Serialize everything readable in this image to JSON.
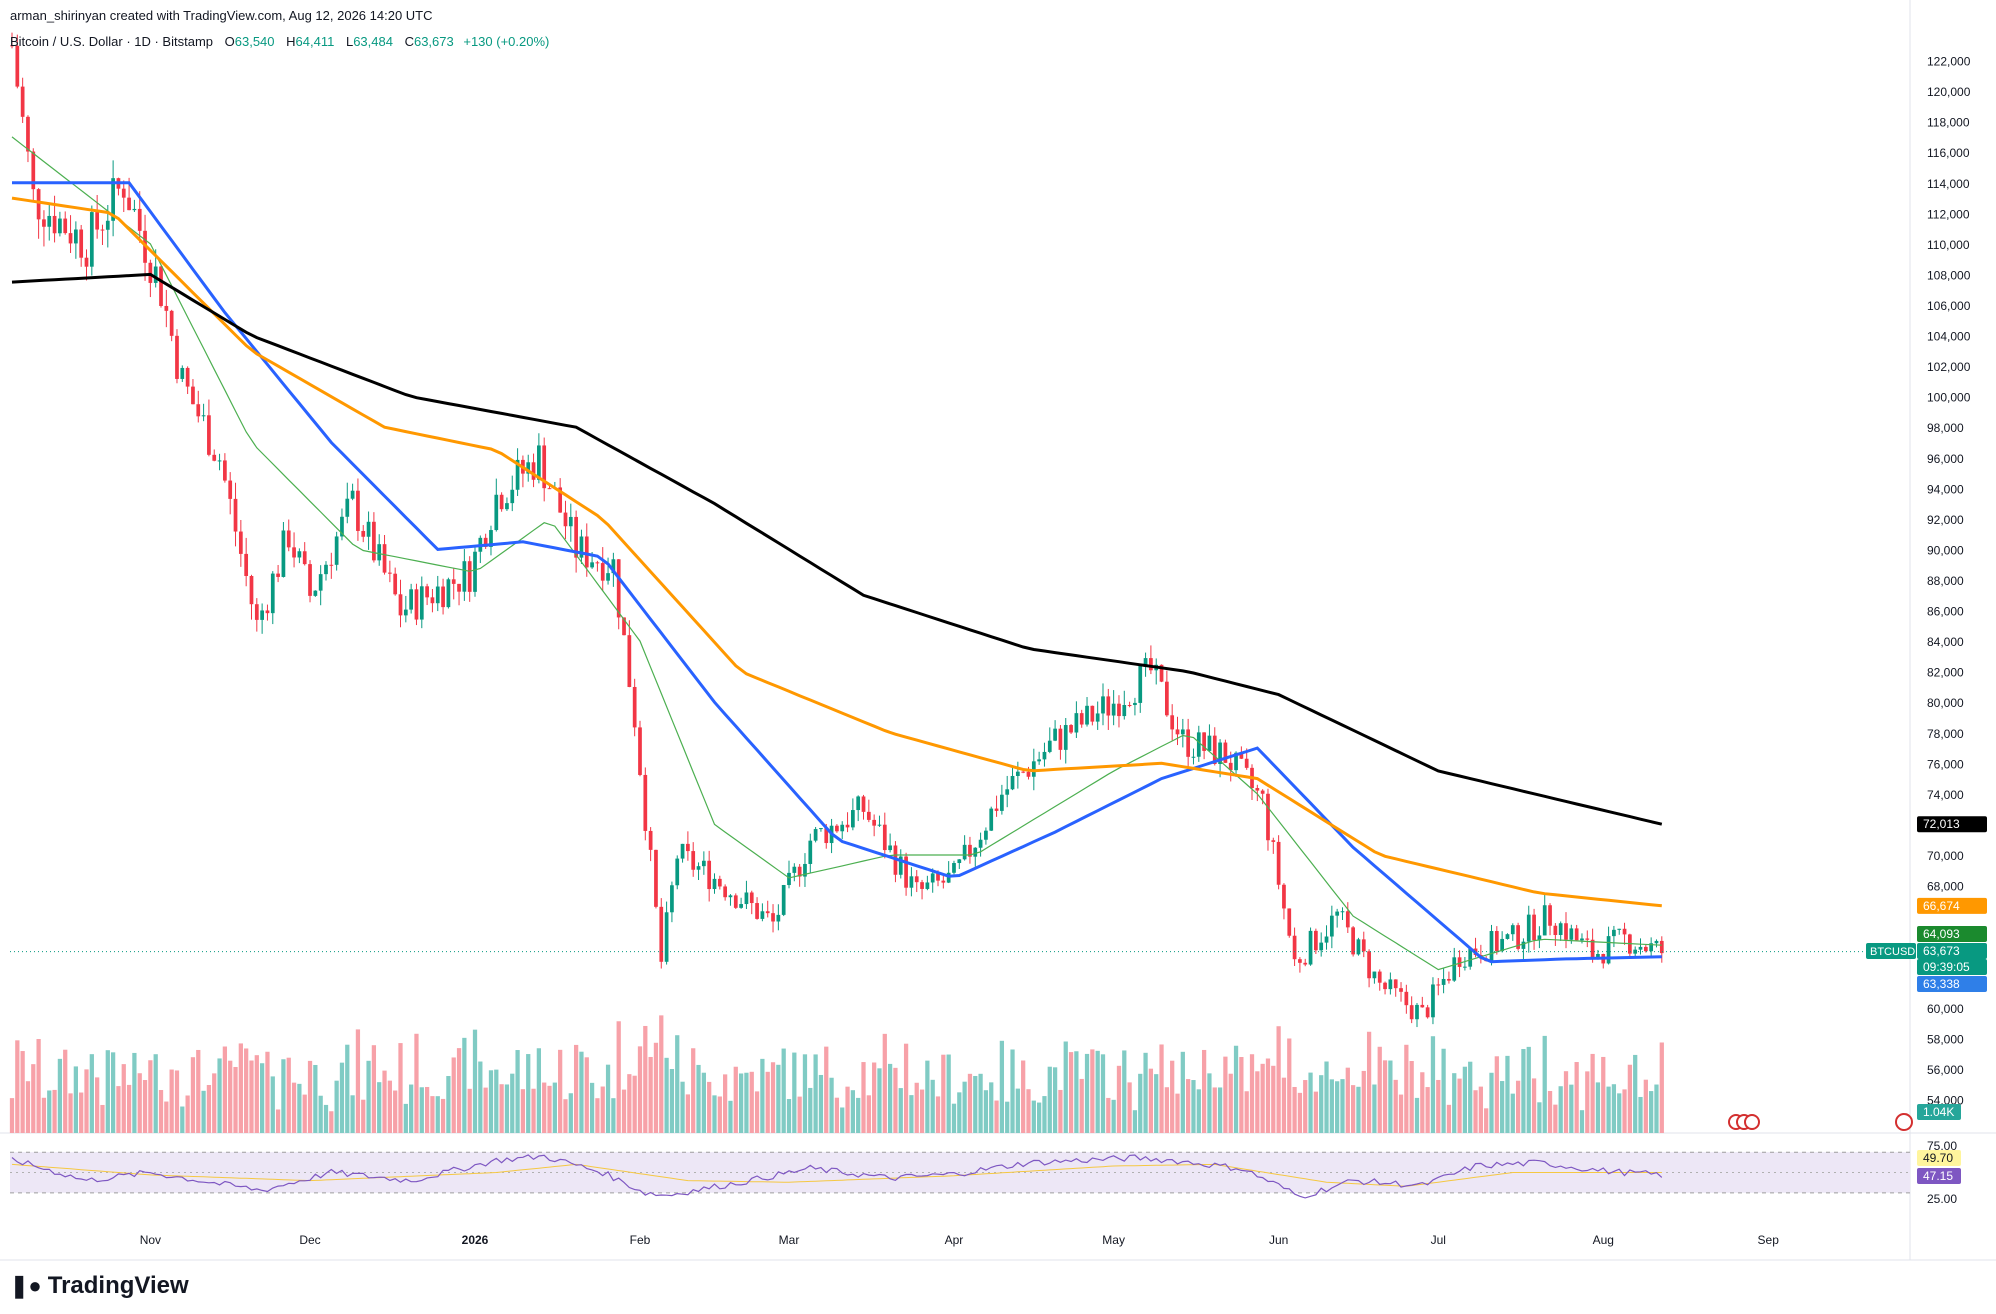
{
  "header": {
    "created_by": "arman_shirinyan created with TradingView.com, Aug 12, 2026 14:20 UTC",
    "symbol_line": "Bitcoin / U.S. Dollar · 1D · Bitstamp",
    "open_label": "O",
    "open": "63,540",
    "high_label": "H",
    "high": "64,411",
    "low_label": "L",
    "low": "63,484",
    "close_label": "C",
    "close": "63,673",
    "change": "+130 (+0.20%)"
  },
  "branding": {
    "logo_text": "TradingView",
    "logo_icon": "tradingview-logo-icon"
  },
  "colors": {
    "up": "#089981",
    "down": "#f23645",
    "up_volume": "#80cbc4",
    "down_volume": "#f7a1a8",
    "ma20": "#4caf50",
    "ma50": "#2962ff",
    "ma100": "#ff9800",
    "ma200": "#000000",
    "rsi": "#7e57c2",
    "rsi_ma": "#f5c842",
    "last_price": "#089981"
  },
  "chart_data": {
    "type": "candlestick",
    "symbol": "BTCUSD",
    "interval": "1D",
    "x_ticks": [
      "Nov",
      "Dec",
      "2026",
      "Feb",
      "Mar",
      "Apr",
      "May",
      "Jun",
      "Jul",
      "Aug",
      "Sep"
    ],
    "y_ticks": [
      "122,000",
      "120,000",
      "118,000",
      "116,000",
      "114,000",
      "112,000",
      "110,000",
      "108,000",
      "106,000",
      "104,000",
      "102,000",
      "100,000",
      "98,000",
      "96,000",
      "94,000",
      "92,000",
      "90,000",
      "88,000",
      "86,000",
      "84,000",
      "82,000",
      "80,000",
      "78,000",
      "76,000",
      "74,000",
      "70,000",
      "68,000",
      "60,000",
      "58,000",
      "56,000",
      "54,000"
    ],
    "ylim": [
      52000,
      124000
    ],
    "price_anchors": [
      {
        "date": "2025-10-06",
        "close": 123000
      },
      {
        "date": "2025-10-10",
        "close": 113000
      },
      {
        "date": "2025-10-20",
        "close": 110000
      },
      {
        "date": "2025-10-27",
        "close": 114000
      },
      {
        "date": "2025-11-03",
        "close": 107000
      },
      {
        "date": "2025-11-07",
        "close": 101000
      },
      {
        "date": "2025-11-14",
        "close": 96000
      },
      {
        "date": "2025-11-21",
        "close": 85000
      },
      {
        "date": "2025-11-27",
        "close": 91000
      },
      {
        "date": "2025-12-01",
        "close": 87000
      },
      {
        "date": "2025-12-09",
        "close": 93000
      },
      {
        "date": "2025-12-18",
        "close": 86000
      },
      {
        "date": "2025-12-31",
        "close": 88500
      },
      {
        "date": "2026-01-05",
        "close": 93500
      },
      {
        "date": "2026-01-13",
        "close": 96000
      },
      {
        "date": "2026-01-20",
        "close": 90000
      },
      {
        "date": "2026-01-27",
        "close": 89000
      },
      {
        "date": "2026-01-31",
        "close": 79000
      },
      {
        "date": "2026-02-05",
        "close": 63000
      },
      {
        "date": "2026-02-08",
        "close": 70000
      },
      {
        "date": "2026-02-15",
        "close": 68500
      },
      {
        "date": "2026-02-26",
        "close": 65500
      },
      {
        "date": "2026-03-05",
        "close": 71000
      },
      {
        "date": "2026-03-15",
        "close": 73000
      },
      {
        "date": "2026-03-25",
        "close": 67500
      },
      {
        "date": "2026-04-01",
        "close": 68500
      },
      {
        "date": "2026-04-10",
        "close": 74000
      },
      {
        "date": "2026-04-20",
        "close": 77500
      },
      {
        "date": "2026-05-01",
        "close": 80000
      },
      {
        "date": "2026-05-08",
        "close": 82000
      },
      {
        "date": "2026-05-14",
        "close": 77500
      },
      {
        "date": "2026-05-22",
        "close": 76500
      },
      {
        "date": "2026-05-29",
        "close": 73500
      },
      {
        "date": "2026-06-04",
        "close": 63000
      },
      {
        "date": "2026-06-12",
        "close": 66000
      },
      {
        "date": "2026-06-20",
        "close": 61500
      },
      {
        "date": "2026-06-28",
        "close": 59500
      },
      {
        "date": "2026-07-05",
        "close": 63500
      },
      {
        "date": "2026-07-15",
        "close": 64500
      },
      {
        "date": "2026-07-22",
        "close": 66000
      },
      {
        "date": "2026-07-30",
        "close": 63500
      },
      {
        "date": "2026-08-05",
        "close": 64500
      },
      {
        "date": "2026-08-12",
        "close": 63673
      }
    ],
    "moving_averages": [
      {
        "name": "MA20",
        "color": "#4caf50",
        "last": "64,093",
        "points": [
          [
            "2025-10-06",
            117000
          ],
          [
            "2025-11-01",
            110000
          ],
          [
            "2025-11-20",
            97000
          ],
          [
            "2025-12-10",
            90000
          ],
          [
            "2026-01-01",
            88500
          ],
          [
            "2026-01-15",
            92000
          ],
          [
            "2026-02-01",
            84000
          ],
          [
            "2026-02-15",
            72000
          ],
          [
            "2026-03-01",
            68500
          ],
          [
            "2026-03-20",
            70000
          ],
          [
            "2026-04-05",
            70000
          ],
          [
            "2026-05-01",
            75500
          ],
          [
            "2026-05-15",
            78000
          ],
          [
            "2026-05-28",
            74000
          ],
          [
            "2026-06-15",
            66000
          ],
          [
            "2026-07-01",
            62500
          ],
          [
            "2026-07-20",
            64500
          ],
          [
            "2026-08-12",
            64093
          ]
        ]
      },
      {
        "name": "MA50",
        "color": "#2962ff",
        "last": "63,338",
        "points": [
          [
            "2025-10-06",
            114000
          ],
          [
            "2025-10-28",
            114000
          ],
          [
            "2025-11-15",
            105500
          ],
          [
            "2025-12-05",
            97000
          ],
          [
            "2025-12-25",
            90000
          ],
          [
            "2026-01-10",
            90500
          ],
          [
            "2026-01-25",
            89500
          ],
          [
            "2026-02-15",
            80000
          ],
          [
            "2026-03-10",
            71000
          ],
          [
            "2026-04-01",
            68500
          ],
          [
            "2026-04-20",
            71500
          ],
          [
            "2026-05-10",
            75000
          ],
          [
            "2026-05-28",
            77000
          ],
          [
            "2026-06-15",
            70500
          ],
          [
            "2026-07-10",
            63000
          ],
          [
            "2026-07-25",
            63200
          ],
          [
            "2026-08-12",
            63338
          ]
        ]
      },
      {
        "name": "MA100",
        "color": "#ff9800",
        "last": "66,674",
        "points": [
          [
            "2025-10-06",
            113000
          ],
          [
            "2025-10-25",
            112000
          ],
          [
            "2025-11-20",
            103000
          ],
          [
            "2025-12-15",
            98000
          ],
          [
            "2026-01-05",
            96500
          ],
          [
            "2026-01-25",
            92000
          ],
          [
            "2026-02-20",
            82000
          ],
          [
            "2026-03-20",
            78000
          ],
          [
            "2026-04-15",
            75500
          ],
          [
            "2026-05-10",
            76000
          ],
          [
            "2026-05-28",
            75000
          ],
          [
            "2026-06-20",
            70000
          ],
          [
            "2026-07-20",
            67500
          ],
          [
            "2026-08-12",
            66674
          ]
        ]
      },
      {
        "name": "MA200",
        "color": "#000000",
        "last": "72,013",
        "points": [
          [
            "2025-10-06",
            107500
          ],
          [
            "2025-11-01",
            108000
          ],
          [
            "2025-11-20",
            104000
          ],
          [
            "2025-12-20",
            100000
          ],
          [
            "2026-01-20",
            98000
          ],
          [
            "2026-02-15",
            93000
          ],
          [
            "2026-03-15",
            87000
          ],
          [
            "2026-04-15",
            83500
          ],
          [
            "2026-05-15",
            82000
          ],
          [
            "2026-06-01",
            80500
          ],
          [
            "2026-07-01",
            75500
          ],
          [
            "2026-08-12",
            72013
          ]
        ]
      }
    ],
    "price_labels": [
      {
        "text": "72,013",
        "value": 72013,
        "bg": "#000000",
        "fg": "#ffffff"
      },
      {
        "text": "66,674",
        "value": 66674,
        "bg": "#ff9800",
        "fg": "#ffffff"
      },
      {
        "text": "64,093",
        "value": 64093,
        "bg": "#1b8a2e",
        "fg": "#ffffff"
      },
      {
        "text": "63,673",
        "value": 63673,
        "bg": "#089981",
        "fg": "#ffffff"
      },
      {
        "text": "09:39:05",
        "value": 63673,
        "bg": "#089981",
        "fg": "#ffffff"
      },
      {
        "text": "63,338",
        "value": 63338,
        "bg": "#2f7fe8",
        "fg": "#ffffff"
      }
    ],
    "symbol_tag": "BTCUSD",
    "volume_label": "1.04K",
    "rsi": {
      "upper": 75,
      "lower": 25,
      "ylim": [
        10,
        90
      ],
      "y_ticks": [
        "75.00",
        "25.00"
      ],
      "value": "47.15",
      "ma_value": "49.70",
      "points": [
        [
          "2025-10-06",
          66
        ],
        [
          "2025-10-20",
          40
        ],
        [
          "2025-11-01",
          50
        ],
        [
          "2025-11-15",
          35
        ],
        [
          "2025-11-22",
          28
        ],
        [
          "2025-12-05",
          50
        ],
        [
          "2025-12-20",
          40
        ],
        [
          "2026-01-05",
          65
        ],
        [
          "2026-01-14",
          70
        ],
        [
          "2026-01-25",
          50
        ],
        [
          "2026-02-02",
          25
        ],
        [
          "2026-02-06",
          22
        ],
        [
          "2026-02-20",
          38
        ],
        [
          "2026-03-05",
          55
        ],
        [
          "2026-03-20",
          43
        ],
        [
          "2026-04-01",
          48
        ],
        [
          "2026-04-15",
          62
        ],
        [
          "2026-05-05",
          68
        ],
        [
          "2026-05-12",
          65
        ],
        [
          "2026-05-25",
          55
        ],
        [
          "2026-06-01",
          34
        ],
        [
          "2026-06-05",
          20
        ],
        [
          "2026-06-15",
          40
        ],
        [
          "2026-06-28",
          34
        ],
        [
          "2026-07-08",
          58
        ],
        [
          "2026-07-20",
          62
        ],
        [
          "2026-08-01",
          52
        ],
        [
          "2026-08-12",
          47
        ]
      ],
      "ma_points": [
        [
          "2025-10-06",
          60
        ],
        [
          "2025-11-01",
          47
        ],
        [
          "2025-12-01",
          40
        ],
        [
          "2026-01-05",
          50
        ],
        [
          "2026-01-20",
          60
        ],
        [
          "2026-02-10",
          40
        ],
        [
          "2026-03-01",
          38
        ],
        [
          "2026-04-01",
          46
        ],
        [
          "2026-05-01",
          58
        ],
        [
          "2026-05-20",
          60
        ],
        [
          "2026-06-10",
          38
        ],
        [
          "2026-06-25",
          33
        ],
        [
          "2026-07-15",
          50
        ],
        [
          "2026-08-12",
          50
        ]
      ]
    }
  }
}
